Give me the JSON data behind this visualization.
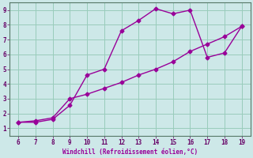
{
  "xlabel": "Windchill (Refroidissement éolien,°C)",
  "xlim": [
    5.5,
    19.5
  ],
  "ylim": [
    0.5,
    9.5
  ],
  "xticks": [
    6,
    7,
    8,
    9,
    10,
    11,
    12,
    13,
    14,
    15,
    16,
    17,
    18,
    19
  ],
  "yticks": [
    1,
    2,
    3,
    4,
    5,
    6,
    7,
    8,
    9
  ],
  "background_color": "#cde8e8",
  "line_color": "#990099",
  "grid_color": "#99ccbb",
  "line1_x": [
    6,
    7,
    8,
    9,
    10,
    11,
    12,
    13,
    14,
    15,
    16,
    17,
    18,
    19
  ],
  "line1_y": [
    1.4,
    1.4,
    1.6,
    2.55,
    4.6,
    5.0,
    7.6,
    8.3,
    9.1,
    8.75,
    9.0,
    5.8,
    6.1,
    7.9
  ],
  "line2_x": [
    6,
    7,
    8,
    9,
    10,
    11,
    12,
    13,
    14,
    15,
    16,
    17,
    18,
    19
  ],
  "line2_y": [
    1.4,
    1.5,
    1.7,
    3.0,
    3.3,
    3.7,
    4.1,
    4.6,
    5.0,
    5.5,
    6.2,
    6.7,
    7.2,
    7.9
  ],
  "marker_size": 2.5,
  "line_width": 1.0
}
